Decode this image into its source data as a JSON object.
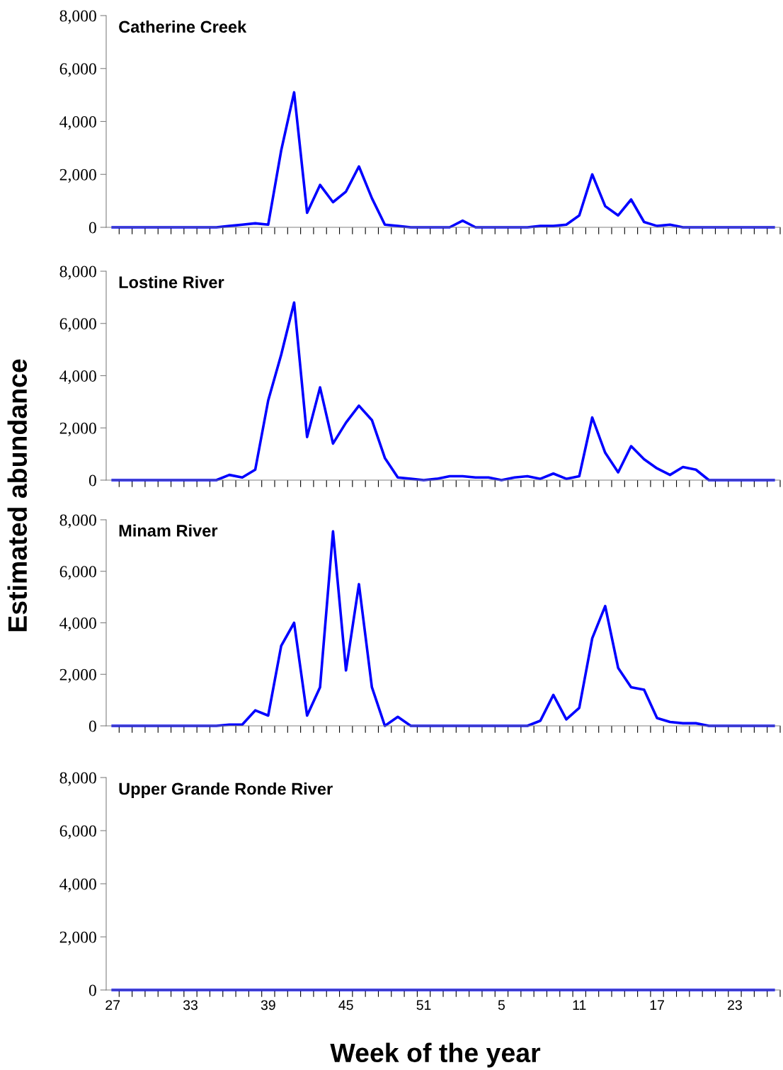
{
  "chart_data": [
    {
      "type": "line",
      "title": "Catherine Creek",
      "tick_labels": "y",
      "grid": false,
      "legend": false,
      "marker": "none",
      "line_style": "solid",
      "categories": [
        "27",
        null,
        null,
        null,
        null,
        null,
        "33",
        null,
        null,
        null,
        null,
        null,
        "39",
        null,
        null,
        null,
        null,
        null,
        "45",
        null,
        null,
        null,
        null,
        null,
        "51",
        null,
        null,
        null,
        null,
        null,
        "5",
        null,
        null,
        null,
        null,
        null,
        "11",
        null,
        null,
        null,
        null,
        null,
        "17",
        null,
        null,
        null,
        null,
        null,
        "23",
        null,
        null,
        null
      ],
      "ylim": [
        0,
        8000
      ],
      "yticks": [
        0,
        {
          "value": 2000,
          "label": "2,000"
        },
        {
          "value": 4000,
          "label": "4,000"
        },
        {
          "value": 6000,
          "label": "6,000"
        },
        {
          "value": 8000,
          "label": "8,000"
        }
      ],
      "series": [
        {
          "color": "#0000ff",
          "values": [
            0,
            0,
            0,
            0,
            0,
            0,
            0,
            0,
            0,
            50,
            100,
            150,
            100,
            2900,
            5100,
            550,
            1600,
            950,
            1350,
            2300,
            1100,
            100,
            50,
            0,
            0,
            0,
            0,
            250,
            0,
            0,
            0,
            0,
            0,
            50,
            50,
            100,
            450,
            2000,
            800,
            450,
            1050,
            200,
            50,
            100,
            0,
            0,
            0,
            0,
            0,
            0,
            0,
            0
          ]
        }
      ]
    },
    {
      "type": "line",
      "title": "Lostine River",
      "tick_labels": "y",
      "grid": false,
      "legend": false,
      "marker": "none",
      "line_style": "solid",
      "ylabel": "Estimated abundance",
      "categories": [
        "27",
        null,
        null,
        null,
        null,
        null,
        "33",
        null,
        null,
        null,
        null,
        null,
        "39",
        null,
        null,
        null,
        null,
        null,
        "45",
        null,
        null,
        null,
        null,
        null,
        "51",
        null,
        null,
        null,
        null,
        null,
        "5",
        null,
        null,
        null,
        null,
        null,
        "11",
        null,
        null,
        null,
        null,
        null,
        "17",
        null,
        null,
        null,
        null,
        null,
        "23",
        null,
        null,
        null
      ],
      "ylim": [
        0,
        8000
      ],
      "yticks": [
        0,
        {
          "value": 2000,
          "label": "2,000"
        },
        {
          "value": 4000,
          "label": "4,000"
        },
        {
          "value": 6000,
          "label": "6,000"
        },
        {
          "value": 8000,
          "label": "8,000"
        }
      ],
      "series": [
        {
          "color": "#0000ff",
          "values": [
            0,
            0,
            0,
            0,
            0,
            0,
            0,
            0,
            0,
            200,
            100,
            400,
            3050,
            4800,
            6800,
            1650,
            3550,
            1400,
            2200,
            2850,
            2300,
            850,
            100,
            50,
            0,
            50,
            150,
            150,
            100,
            100,
            0,
            100,
            150,
            50,
            250,
            50,
            150,
            2400,
            1050,
            300,
            1300,
            800,
            450,
            200,
            500,
            400,
            0,
            0,
            0,
            0,
            0,
            0
          ]
        }
      ]
    },
    {
      "type": "line",
      "title": "Minam River",
      "tick_labels": "y",
      "grid": false,
      "legend": false,
      "marker": "none",
      "line_style": "solid",
      "categories": [
        "27",
        null,
        null,
        null,
        null,
        null,
        "33",
        null,
        null,
        null,
        null,
        null,
        "39",
        null,
        null,
        null,
        null,
        null,
        "45",
        null,
        null,
        null,
        null,
        null,
        "51",
        null,
        null,
        null,
        null,
        null,
        "5",
        null,
        null,
        null,
        null,
        null,
        "11",
        null,
        null,
        null,
        null,
        null,
        "17",
        null,
        null,
        null,
        null,
        null,
        "23",
        null,
        null,
        null
      ],
      "ylim": [
        0,
        8000
      ],
      "yticks": [
        0,
        {
          "value": 2000,
          "label": "2,000"
        },
        {
          "value": 4000,
          "label": "4,000"
        },
        {
          "value": 6000,
          "label": "6,000"
        },
        {
          "value": 8000,
          "label": "8,000"
        }
      ],
      "series": [
        {
          "color": "#0000ff",
          "values": [
            0,
            0,
            0,
            0,
            0,
            0,
            0,
            0,
            0,
            50,
            50,
            600,
            400,
            3100,
            4000,
            400,
            1500,
            7550,
            2150,
            5500,
            1500,
            0,
            350,
            0,
            0,
            0,
            0,
            0,
            0,
            0,
            0,
            0,
            0,
            200,
            1200,
            250,
            700,
            3400,
            4650,
            2250,
            1500,
            1400,
            300,
            150,
            100,
            100,
            0,
            0,
            0,
            0,
            0,
            0
          ]
        }
      ]
    },
    {
      "type": "line",
      "title": "Upper Grande Ronde River",
      "grid": false,
      "legend": false,
      "marker": "none",
      "line_style": "solid",
      "xlabel": "Week of the year",
      "categories": [
        "27",
        null,
        null,
        null,
        null,
        null,
        "33",
        null,
        null,
        null,
        null,
        null,
        "39",
        null,
        null,
        null,
        null,
        null,
        "45",
        null,
        null,
        null,
        null,
        null,
        "51",
        null,
        null,
        null,
        null,
        null,
        "5",
        null,
        null,
        null,
        null,
        null,
        "11",
        null,
        null,
        null,
        null,
        null,
        "17",
        null,
        null,
        null,
        null,
        null,
        "23",
        null,
        null,
        null
      ],
      "ylim": [
        0,
        8000
      ],
      "yticks": [
        0,
        {
          "value": 2000,
          "label": "2,000"
        },
        {
          "value": 4000,
          "label": "4,000"
        },
        {
          "value": 6000,
          "label": "6,000"
        },
        {
          "value": 8000,
          "label": "8,000"
        }
      ],
      "series": [
        {
          "color": "#0000ff",
          "values": [
            0,
            0,
            0,
            0,
            0,
            0,
            0,
            0,
            0,
            0,
            0,
            0,
            0,
            0,
            0,
            0,
            0,
            0,
            0,
            0,
            0,
            0,
            0,
            0,
            0,
            0,
            0,
            0,
            0,
            0,
            0,
            0,
            0,
            0,
            0,
            0,
            0,
            0,
            0,
            0,
            0,
            0,
            0,
            0,
            0,
            0,
            0,
            0,
            0,
            0,
            0,
            0
          ]
        }
      ]
    }
  ]
}
